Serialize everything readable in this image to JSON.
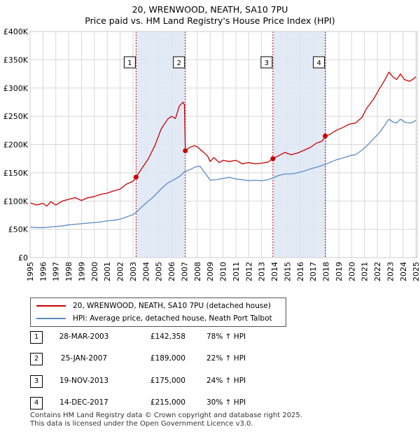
{
  "header": {
    "title": "20, WRENWOOD, NEATH, SA10 7PU",
    "subtitle": "Price paid vs. HM Land Registry's House Price Index (HPI)"
  },
  "legend": {
    "property": "20, WRENWOOD, NEATH, SA10 7PU (detached house)",
    "hpi": "HPI: Average price, detached house, Neath Port Talbot"
  },
  "transactions": [
    {
      "num": "1",
      "date": "28-MAR-2003",
      "price": "£142,358",
      "hpi": "78% ↑ HPI"
    },
    {
      "num": "2",
      "date": "25-JAN-2007",
      "price": "£189,000",
      "hpi": "22% ↑ HPI"
    },
    {
      "num": "3",
      "date": "19-NOV-2013",
      "price": "£175,000",
      "hpi": "24% ↑ HPI"
    },
    {
      "num": "4",
      "date": "14-DEC-2017",
      "price": "£215,000",
      "hpi": "30% ↑ HPI"
    }
  ],
  "footer": {
    "line1": "Contains HM Land Registry data © Crown copyright and database right 2025.",
    "line2": "This data is licensed under the Open Government Licence v3.0."
  },
  "colors": {
    "property_line": "#cc0000",
    "hpi_line": "#5b8cc8",
    "shade": "#dde6f5",
    "grid": "#d8d8d8"
  },
  "chart_data": {
    "type": "line",
    "title": "20, WRENWOOD, NEATH, SA10 7PU",
    "subtitle": "Price paid vs. HM Land Registry's House Price Index (HPI)",
    "xlabel": "",
    "ylabel": "",
    "xlim": [
      1995,
      2025.1
    ],
    "ylim": [
      0,
      400000
    ],
    "y_ticks": [
      0,
      50000,
      100000,
      150000,
      200000,
      250000,
      300000,
      350000,
      400000
    ],
    "y_tick_labels": [
      "£0",
      "£50K",
      "£100K",
      "£150K",
      "£200K",
      "£250K",
      "£300K",
      "£350K",
      "£400K"
    ],
    "x_ticks": [
      1995,
      1996,
      1997,
      1998,
      1999,
      2000,
      2001,
      2002,
      2003,
      2004,
      2005,
      2006,
      2007,
      2008,
      2009,
      2010,
      2011,
      2012,
      2013,
      2014,
      2015,
      2016,
      2017,
      2018,
      2019,
      2020,
      2021,
      2022,
      2023,
      2024,
      2025
    ],
    "grid": true,
    "series": [
      {
        "name": "20, WRENWOOD, NEATH, SA10 7PU (detached house)",
        "color": "#cc0000",
        "points": [
          [
            1995.0,
            97000
          ],
          [
            1995.5,
            93000
          ],
          [
            1996.0,
            96000
          ],
          [
            1996.3,
            91000
          ],
          [
            1996.6,
            99000
          ],
          [
            1997.0,
            93000
          ],
          [
            1997.5,
            100000
          ],
          [
            1998.0,
            103000
          ],
          [
            1998.5,
            106000
          ],
          [
            1999.0,
            101000
          ],
          [
            1999.5,
            106000
          ],
          [
            2000.0,
            108000
          ],
          [
            2000.5,
            112000
          ],
          [
            2001.0,
            114000
          ],
          [
            2001.5,
            118000
          ],
          [
            2002.0,
            121000
          ],
          [
            2002.5,
            130000
          ],
          [
            2003.0,
            135000
          ],
          [
            2003.24,
            142358
          ],
          [
            2003.7,
            158000
          ],
          [
            2004.2,
            175000
          ],
          [
            2004.7,
            198000
          ],
          [
            2005.2,
            228000
          ],
          [
            2005.7,
            245000
          ],
          [
            2006.0,
            250000
          ],
          [
            2006.3,
            246000
          ],
          [
            2006.6,
            268000
          ],
          [
            2006.9,
            275000
          ],
          [
            2007.0,
            270000
          ],
          [
            2007.07,
            189000
          ],
          [
            2007.4,
            195000
          ],
          [
            2007.8,
            198000
          ],
          [
            2008.0,
            196000
          ],
          [
            2008.4,
            188000
          ],
          [
            2008.8,
            180000
          ],
          [
            2009.0,
            170000
          ],
          [
            2009.3,
            177000
          ],
          [
            2009.7,
            168000
          ],
          [
            2010.0,
            172000
          ],
          [
            2010.5,
            170000
          ],
          [
            2011.0,
            172000
          ],
          [
            2011.5,
            166000
          ],
          [
            2012.0,
            168000
          ],
          [
            2012.5,
            166000
          ],
          [
            2013.0,
            167000
          ],
          [
            2013.5,
            169000
          ],
          [
            2013.88,
            175000
          ],
          [
            2014.3,
            180000
          ],
          [
            2014.8,
            186000
          ],
          [
            2015.3,
            182000
          ],
          [
            2015.8,
            185000
          ],
          [
            2016.3,
            190000
          ],
          [
            2016.8,
            195000
          ],
          [
            2017.3,
            203000
          ],
          [
            2017.7,
            206000
          ],
          [
            2017.95,
            215000
          ],
          [
            2018.3,
            218000
          ],
          [
            2018.8,
            225000
          ],
          [
            2019.3,
            230000
          ],
          [
            2019.8,
            236000
          ],
          [
            2020.3,
            238000
          ],
          [
            2020.8,
            248000
          ],
          [
            2021.2,
            265000
          ],
          [
            2021.7,
            280000
          ],
          [
            2022.2,
            300000
          ],
          [
            2022.6,
            315000
          ],
          [
            2022.9,
            328000
          ],
          [
            2023.2,
            320000
          ],
          [
            2023.5,
            315000
          ],
          [
            2023.8,
            325000
          ],
          [
            2024.1,
            315000
          ],
          [
            2024.5,
            312000
          ],
          [
            2024.8,
            316000
          ],
          [
            2025.0,
            320000
          ]
        ]
      },
      {
        "name": "HPI: Average price, detached house, Neath Port Talbot",
        "color": "#5b8cc8",
        "points": [
          [
            1995.0,
            54000
          ],
          [
            1995.5,
            53000
          ],
          [
            1996.0,
            53000
          ],
          [
            1996.5,
            54000
          ],
          [
            1997.0,
            55000
          ],
          [
            1997.5,
            56000
          ],
          [
            1998.0,
            58000
          ],
          [
            1998.5,
            59000
          ],
          [
            1999.0,
            60000
          ],
          [
            1999.5,
            61000
          ],
          [
            2000.0,
            62000
          ],
          [
            2000.5,
            63000
          ],
          [
            2001.0,
            65000
          ],
          [
            2001.5,
            66000
          ],
          [
            2002.0,
            68000
          ],
          [
            2002.5,
            72000
          ],
          [
            2003.0,
            76000
          ],
          [
            2003.24,
            80000
          ],
          [
            2003.7,
            90000
          ],
          [
            2004.2,
            100000
          ],
          [
            2004.7,
            110000
          ],
          [
            2005.2,
            122000
          ],
          [
            2005.7,
            132000
          ],
          [
            2006.2,
            138000
          ],
          [
            2006.7,
            145000
          ],
          [
            2007.0,
            152000
          ],
          [
            2007.4,
            155000
          ],
          [
            2007.8,
            160000
          ],
          [
            2008.2,
            162000
          ],
          [
            2008.6,
            150000
          ],
          [
            2009.0,
            137000
          ],
          [
            2009.5,
            138000
          ],
          [
            2010.0,
            140000
          ],
          [
            2010.5,
            142000
          ],
          [
            2011.0,
            139000
          ],
          [
            2011.5,
            138000
          ],
          [
            2012.0,
            136000
          ],
          [
            2012.5,
            137000
          ],
          [
            2013.0,
            136000
          ],
          [
            2013.5,
            138000
          ],
          [
            2013.88,
            141000
          ],
          [
            2014.3,
            145000
          ],
          [
            2014.8,
            148000
          ],
          [
            2015.3,
            148000
          ],
          [
            2015.8,
            150000
          ],
          [
            2016.3,
            153000
          ],
          [
            2016.8,
            157000
          ],
          [
            2017.3,
            160000
          ],
          [
            2017.7,
            163000
          ],
          [
            2017.95,
            165000
          ],
          [
            2018.3,
            168000
          ],
          [
            2018.8,
            173000
          ],
          [
            2019.3,
            176000
          ],
          [
            2019.8,
            180000
          ],
          [
            2020.3,
            182000
          ],
          [
            2020.8,
            190000
          ],
          [
            2021.2,
            198000
          ],
          [
            2021.7,
            210000
          ],
          [
            2022.2,
            222000
          ],
          [
            2022.6,
            235000
          ],
          [
            2022.9,
            245000
          ],
          [
            2023.2,
            240000
          ],
          [
            2023.5,
            238000
          ],
          [
            2023.8,
            245000
          ],
          [
            2024.1,
            240000
          ],
          [
            2024.5,
            238000
          ],
          [
            2024.8,
            240000
          ],
          [
            2025.0,
            243000
          ]
        ]
      }
    ],
    "sales": [
      {
        "label": "1",
        "x": 2003.24,
        "y": 142358
      },
      {
        "label": "2",
        "x": 2007.07,
        "y": 189000
      },
      {
        "label": "3",
        "x": 2013.88,
        "y": 175000
      },
      {
        "label": "4",
        "x": 2017.95,
        "y": 215000
      }
    ],
    "shaded_periods": [
      [
        2003.24,
        2007.07
      ],
      [
        2013.88,
        2017.95
      ]
    ],
    "hatched_from": 2025.0
  }
}
